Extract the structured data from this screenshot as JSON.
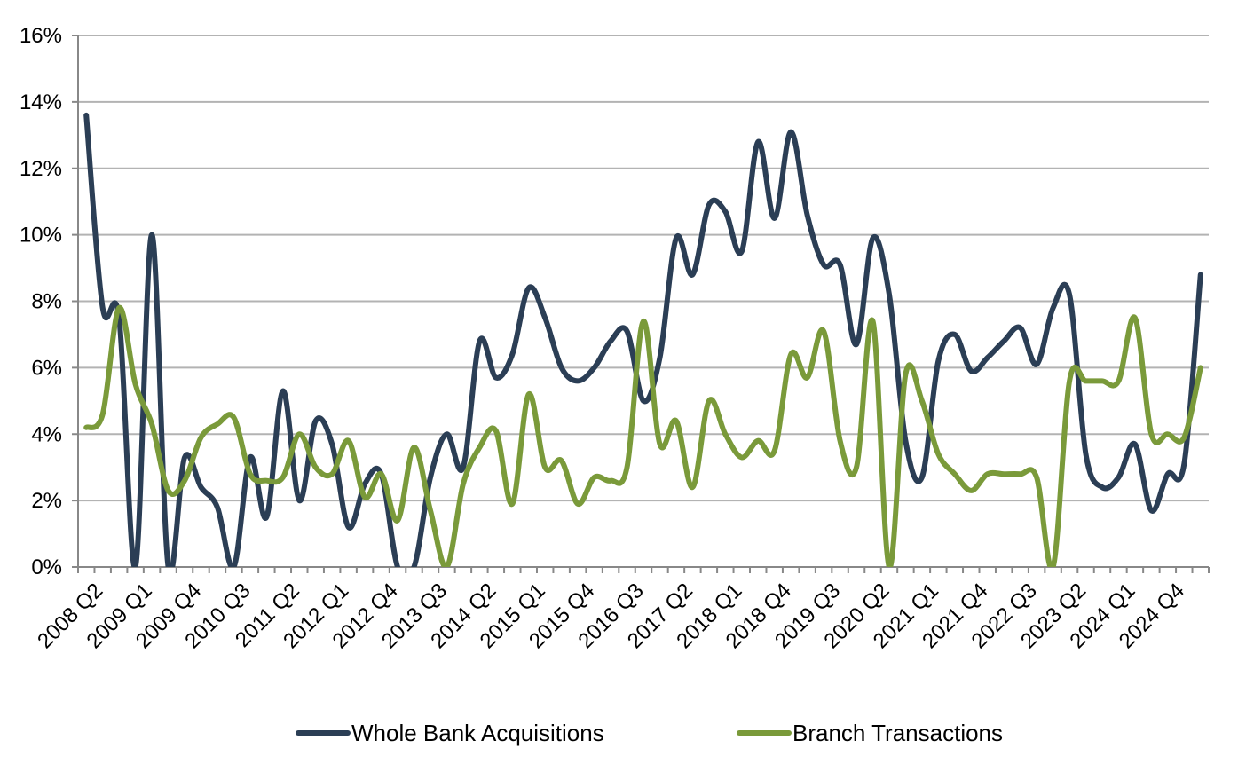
{
  "chart_data": {
    "type": "line",
    "title": "",
    "xlabel": "",
    "ylabel": "",
    "ylim": [
      0,
      16
    ],
    "y_ticks": [
      "0%",
      "2%",
      "4%",
      "6%",
      "8%",
      "10%",
      "12%",
      "14%",
      "16%"
    ],
    "grid": true,
    "legend_position": "bottom",
    "x_tick_labels": [
      "2008 Q2",
      "2009 Q1",
      "2009 Q4",
      "2010 Q3",
      "2011 Q2",
      "2012 Q1",
      "2012 Q4",
      "2013 Q3",
      "2014 Q2",
      "2015 Q1",
      "2015 Q4",
      "2016 Q3",
      "2017 Q2",
      "2018 Q1",
      "2018 Q4",
      "2019 Q3",
      "2020 Q2",
      "2021 Q1",
      "2021 Q4",
      "2022 Q3",
      "2023 Q2",
      "2024 Q1",
      "2024 Q4"
    ],
    "x": [
      "2008 Q2",
      "2008 Q3",
      "2008 Q4",
      "2009 Q1",
      "2009 Q2",
      "2009 Q3",
      "2009 Q4",
      "2010 Q1",
      "2010 Q2",
      "2010 Q3",
      "2010 Q4",
      "2011 Q1",
      "2011 Q2",
      "2011 Q3",
      "2011 Q4",
      "2012 Q1",
      "2012 Q2",
      "2012 Q3",
      "2012 Q4",
      "2013 Q1",
      "2013 Q2",
      "2013 Q3",
      "2013 Q4",
      "2014 Q1",
      "2014 Q2",
      "2014 Q3",
      "2014 Q4",
      "2015 Q1",
      "2015 Q2",
      "2015 Q3",
      "2015 Q4",
      "2016 Q1",
      "2016 Q2",
      "2016 Q3",
      "2016 Q4",
      "2017 Q1",
      "2017 Q2",
      "2017 Q3",
      "2017 Q4",
      "2018 Q1",
      "2018 Q2",
      "2018 Q3",
      "2018 Q4",
      "2019 Q1",
      "2019 Q2",
      "2019 Q3",
      "2019 Q4",
      "2020 Q1",
      "2020 Q2",
      "2020 Q3",
      "2020 Q4",
      "2021 Q1",
      "2021 Q2",
      "2021 Q3",
      "2021 Q4",
      "2022 Q1",
      "2022 Q2",
      "2022 Q3",
      "2022 Q4",
      "2023 Q1",
      "2023 Q2",
      "2023 Q3",
      "2023 Q4",
      "2024 Q1",
      "2024 Q2",
      "2024 Q3",
      "2024 Q4",
      "2025 Q1",
      "2025 Q2"
    ],
    "series": [
      {
        "name": "Whole Bank Acquisitions",
        "color": "#2b3e55",
        "values": [
          13.6,
          7.8,
          7.5,
          0,
          10,
          0,
          3.3,
          2.4,
          1.8,
          0,
          3.3,
          1.5,
          5.3,
          2,
          4.4,
          3.7,
          1.2,
          2.5,
          2.8,
          0,
          0,
          2.7,
          4.0,
          3.0,
          6.8,
          5.7,
          6.4,
          8.4,
          7.5,
          6.0,
          5.6,
          6.0,
          6.8,
          7.1,
          5.0,
          6.3,
          9.9,
          8.8,
          10.9,
          10.7,
          9.5,
          12.8,
          10.5,
          13.1,
          10.6,
          9.1,
          9.1,
          6.7,
          9.9,
          8.2,
          3.8,
          2.7,
          6.2,
          7.0,
          5.9,
          6.3,
          6.8,
          7.2,
          6.1,
          7.8,
          8.2,
          3.4,
          2.4,
          2.7,
          3.7,
          1.7,
          2.8,
          3.1,
          8.8
        ]
      },
      {
        "name": "Branch Transactions",
        "color": "#7a9a3a",
        "values": [
          4.2,
          4.6,
          7.8,
          5.5,
          4.3,
          2.3,
          2.6,
          3.9,
          4.3,
          4.5,
          2.8,
          2.6,
          2.7,
          4.0,
          3.0,
          2.8,
          3.8,
          2.1,
          2.8,
          1.4,
          3.6,
          1.7,
          0,
          2.5,
          3.6,
          4.1,
          1.9,
          5.2,
          3.0,
          3.2,
          1.9,
          2.7,
          2.6,
          3.0,
          7.4,
          3.7,
          4.4,
          2.4,
          5.0,
          4.0,
          3.3,
          3.8,
          3.5,
          6.4,
          5.7,
          7.1,
          3.8,
          3.0,
          7.4,
          0,
          5.8,
          5.0,
          3.4,
          2.8,
          2.3,
          2.8,
          2.8,
          2.8,
          2.7,
          0,
          5.6,
          5.6,
          5.6,
          5.6,
          7.5,
          4.0,
          4.0,
          3.9,
          6.0
        ]
      }
    ]
  }
}
